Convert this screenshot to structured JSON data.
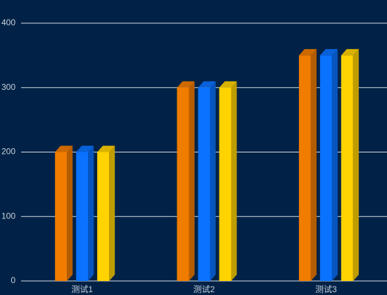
{
  "chart_data": {
    "type": "bar3d",
    "categories": [
      "测试1",
      "测试2",
      "测试3"
    ],
    "series": [
      {
        "color": "#f07c00",
        "values": [
          200,
          300,
          350
        ]
      },
      {
        "color": "#0a72ff",
        "values": [
          200,
          300,
          350
        ]
      },
      {
        "color": "#ffd200",
        "values": [
          200,
          300,
          350
        ]
      }
    ],
    "ylim": [
      0,
      400
    ],
    "yticks": [
      0,
      100,
      200,
      300,
      400
    ],
    "grid": true
  }
}
